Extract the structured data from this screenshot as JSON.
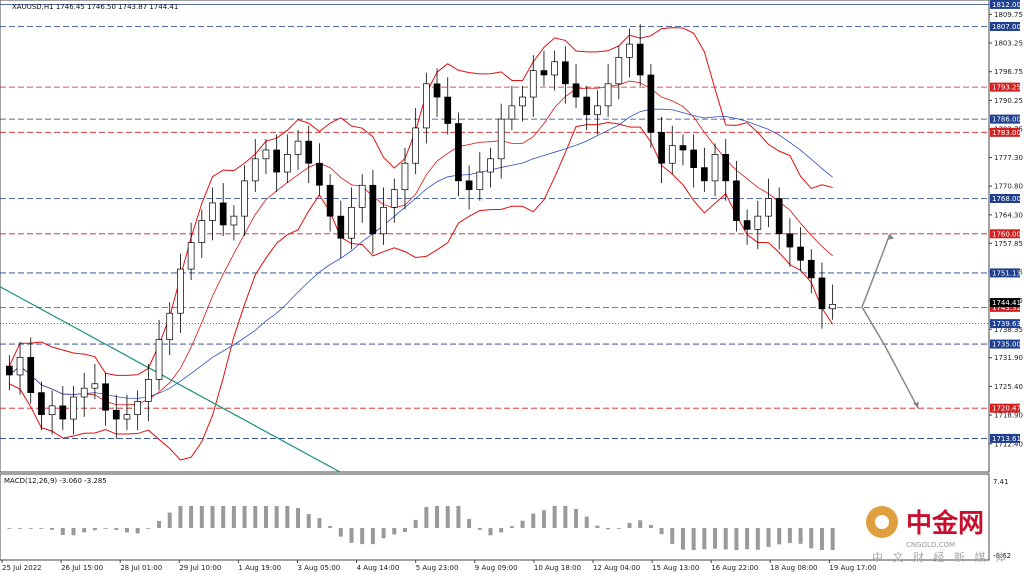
{
  "chart_data": {
    "type": "candlestick",
    "symbol_header": "XAUUSD,H1  1746.45 1746.50 1743.87 1744.41",
    "macd_header": "MACD(12,26,9) -3.060 -3.285",
    "ylim": [
      1706,
      1813
    ],
    "y_ticks": [
      "1809.75",
      "1803.25",
      "1796.75",
      "1790.25",
      "1783.75",
      "1777.30",
      "1770.80",
      "1764.30",
      "1757.85",
      "1751.35",
      "1744.85",
      "1738.35",
      "1731.90",
      "1725.40",
      "1718.90",
      "1712.40"
    ],
    "macd_ticks": [
      "7.41",
      "-6.62"
    ],
    "x_ticks": [
      "25 Jul 2022",
      "26 Jul 15:00",
      "28 Jul 01:00",
      "29 Jul 10:00",
      "1 Aug 19:00",
      "3 Aug 05:00",
      "4 Aug 14:00",
      "5 Aug 23:00",
      "9 Aug 09:00",
      "10 Aug 18:00",
      "12 Aug 04:00",
      "15 Aug 13:00",
      "16 Aug 22:00",
      "18 Aug 08:00",
      "19 Aug 17:00"
    ],
    "levels": [
      {
        "value": 1812.0,
        "label": "1812.00",
        "color": "#1f3f8f",
        "style": "solid"
      },
      {
        "value": 1807.0,
        "label": "1807.00",
        "color": "#1f3f8f",
        "style": "dash"
      },
      {
        "value": 1793.25,
        "label": "1793.25",
        "color": "#d02020",
        "style": "dash"
      },
      {
        "value": 1786.0,
        "label": "1786.00",
        "color": "#1f3f8f",
        "style": "dash"
      },
      {
        "value": 1783.0,
        "label": "1783.00",
        "color": "#d02020",
        "style": "dash"
      },
      {
        "value": 1768.0,
        "label": "1768.00",
        "color": "#1f3f8f",
        "style": "dash"
      },
      {
        "value": 1760.0,
        "label": "1760.00",
        "color": "#d02020",
        "style": "dash"
      },
      {
        "value": 1751.13,
        "label": "1751.13",
        "color": "#1f3f8f",
        "style": "dash"
      },
      {
        "value": 1743.32,
        "label": "1743.32",
        "color": "#d02020",
        "style": "dash"
      },
      {
        "value": 1739.63,
        "label": "1739.63",
        "color": "#1f3f8f",
        "style": "dot"
      },
      {
        "value": 1735.0,
        "label": "1735.00",
        "color": "#1f3f8f",
        "style": "dash"
      },
      {
        "value": 1720.47,
        "label": "1720.47",
        "color": "#d02020",
        "style": "dash"
      },
      {
        "value": 1713.61,
        "label": "1713.61",
        "color": "#1f3f8f",
        "style": "dash"
      }
    ],
    "current_price": {
      "value": 1744.41,
      "label": "1744.41"
    },
    "closes": [
      1728,
      1732,
      1724,
      1719,
      1721,
      1718,
      1723,
      1725,
      1726,
      1720,
      1718,
      1719,
      1722,
      1727,
      1736,
      1742,
      1752,
      1758,
      1763,
      1767,
      1762,
      1764,
      1772,
      1777,
      1779,
      1774,
      1778,
      1781,
      1776,
      1771,
      1764,
      1759,
      1766,
      1771,
      1760,
      1766,
      1770,
      1776,
      1784,
      1794,
      1791,
      1785,
      1772,
      1770,
      1774,
      1777,
      1786,
      1789,
      1791,
      1797,
      1796,
      1799,
      1794,
      1791,
      1787,
      1789,
      1794,
      1800,
      1803,
      1796,
      1783,
      1776,
      1780,
      1779,
      1775,
      1772,
      1778,
      1772,
      1763,
      1761,
      1764,
      1768,
      1760,
      1757,
      1754,
      1750,
      1743,
      1744
    ],
    "annotations": {
      "up_target": 1760.0,
      "down_target": 1720.47
    },
    "watermark": {
      "brand": "中金网",
      "site": "CNGOLD.COM",
      "tagline": "中 文 财 经 新 媒 体"
    }
  }
}
